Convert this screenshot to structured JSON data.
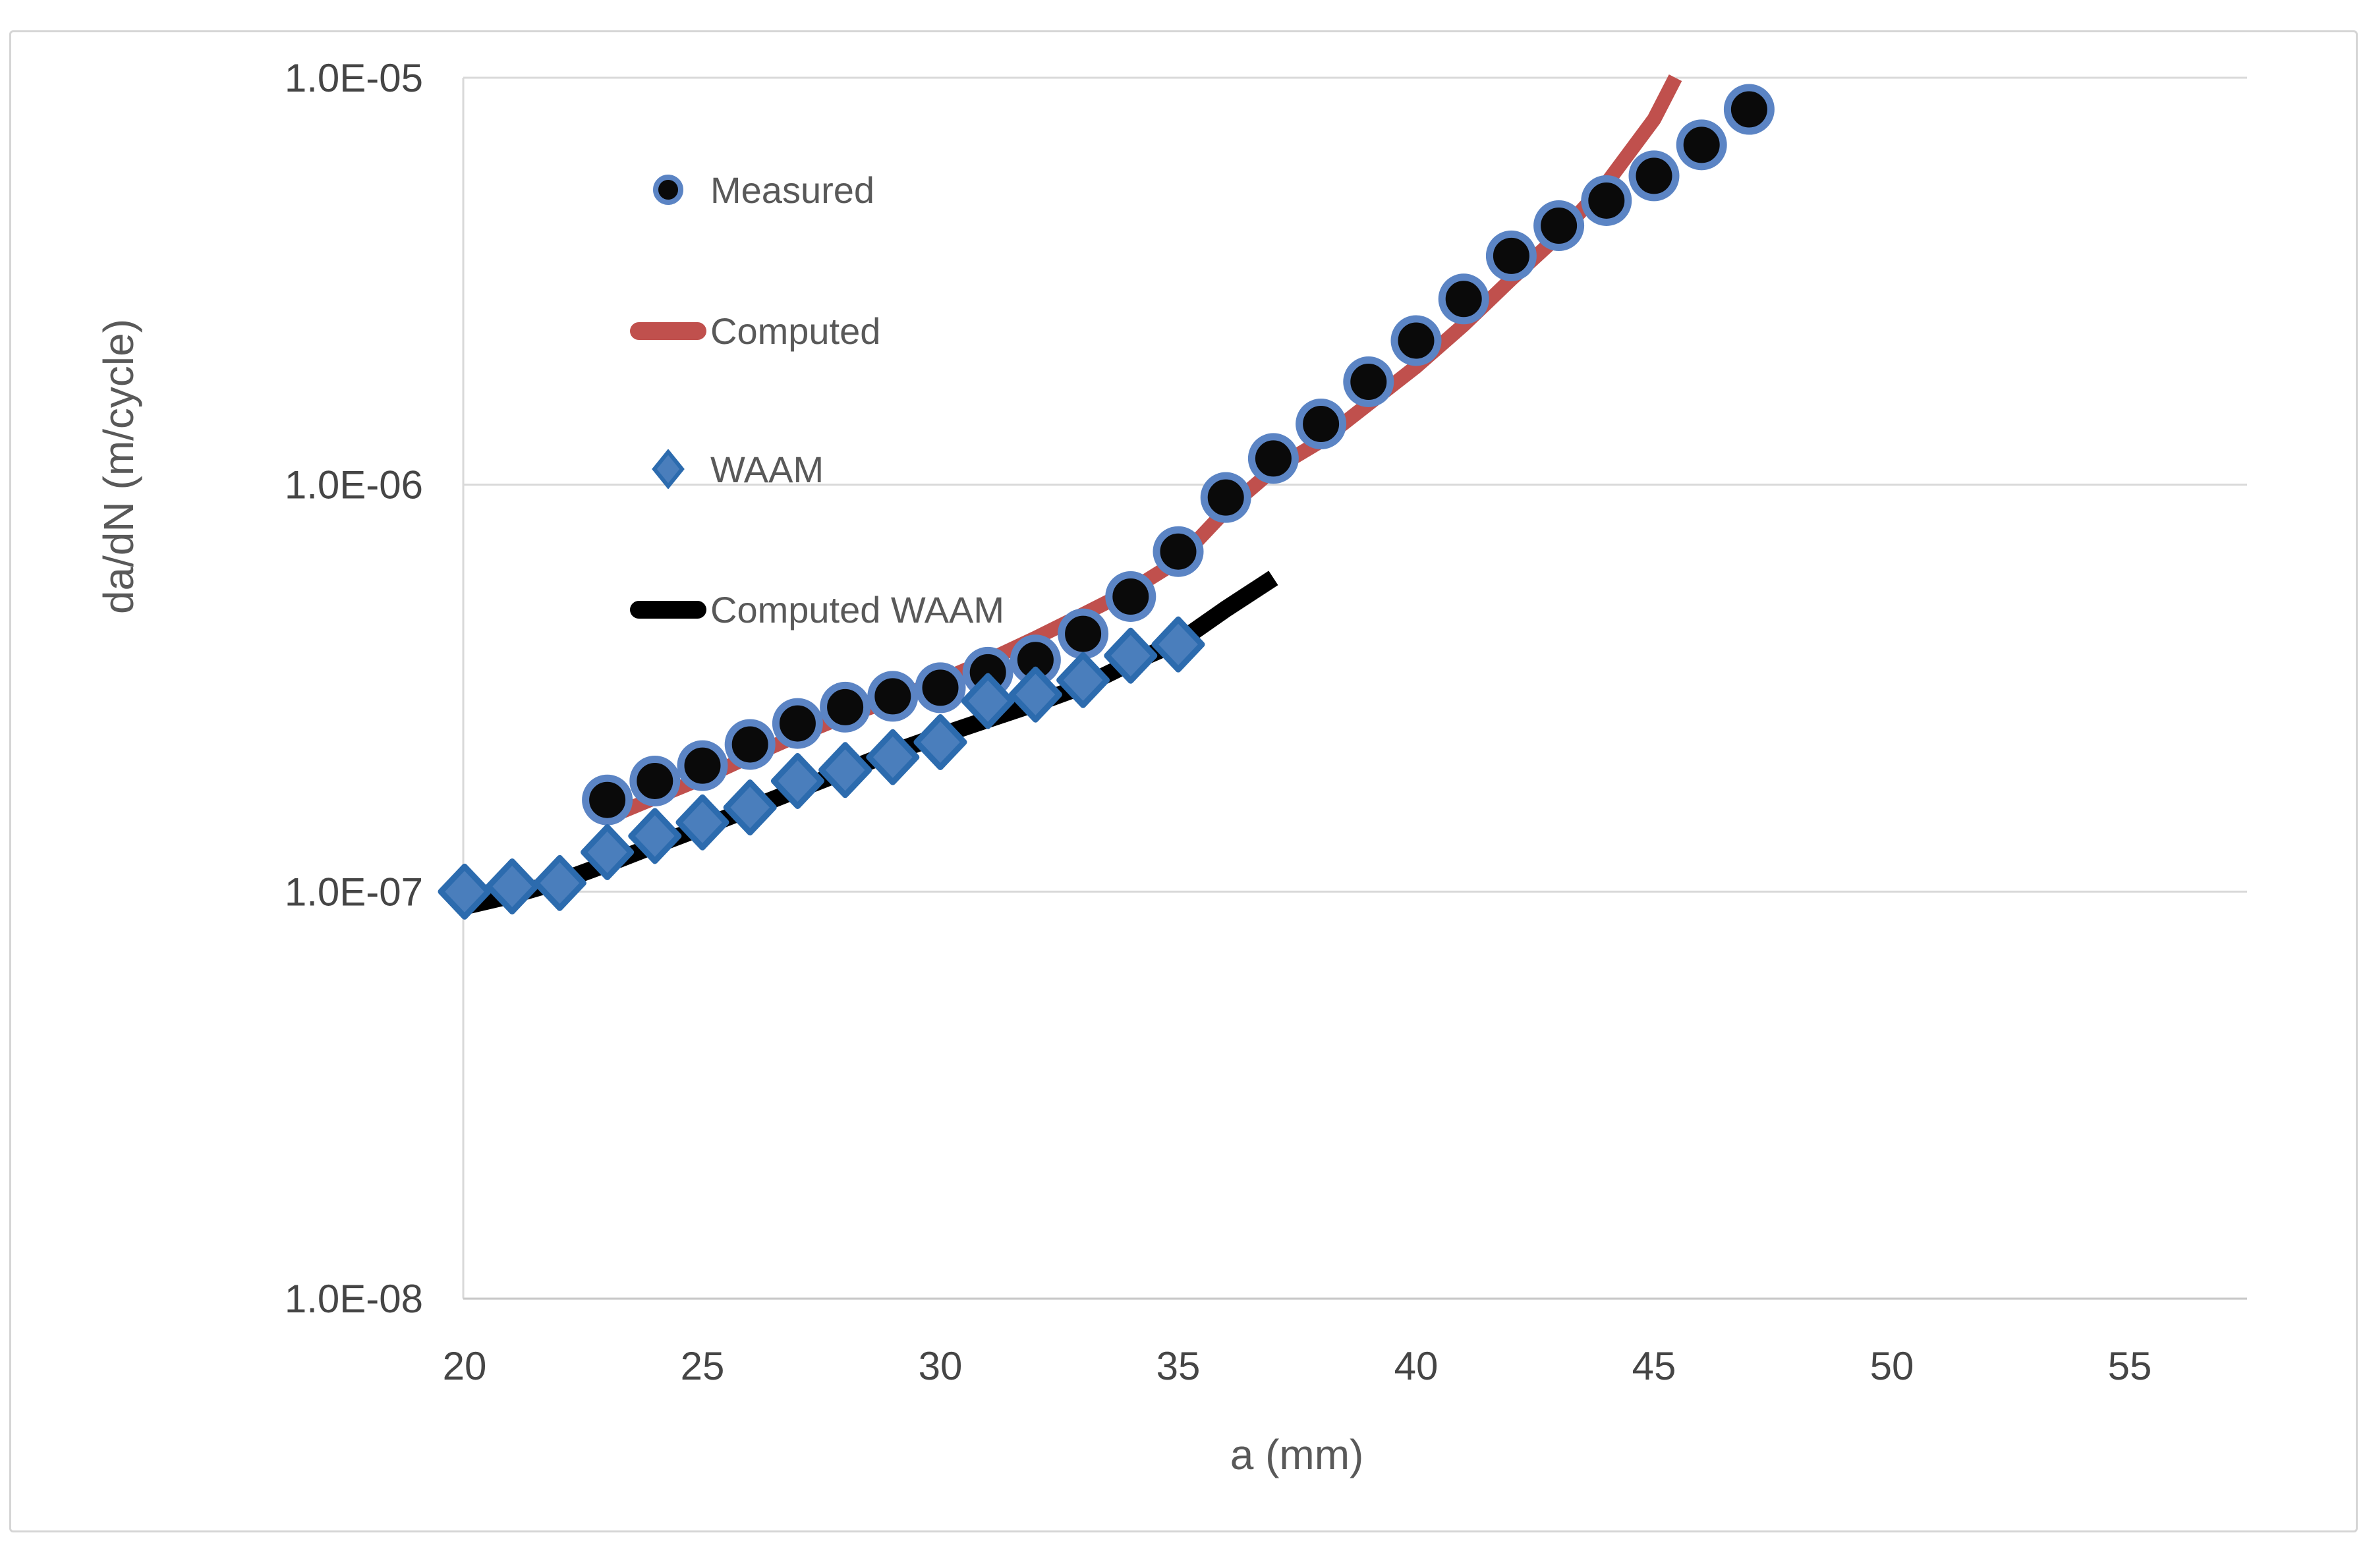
{
  "chart_data": {
    "type": "scatter",
    "title": "",
    "xlabel": "a (mm)",
    "ylabel": "da/dN (m/cycle)",
    "x_axis": {
      "min": 20,
      "max": 57.5,
      "tick_labels": [
        "20",
        "25",
        "30",
        "35",
        "40",
        "45",
        "50",
        "55"
      ],
      "tick_values": [
        20,
        25,
        30,
        35,
        40,
        45,
        50,
        55
      ]
    },
    "y_axis": {
      "scale": "log",
      "min": 1e-08,
      "max": 1e-05,
      "tick_labels": [
        "1.0E-05",
        "1.0E-06",
        "1.0E-07",
        "1.0E-08"
      ],
      "tick_values": [
        1e-05,
        1e-06,
        1e-07,
        1e-08
      ]
    },
    "grid": true,
    "legend_position": "inside-upper-left",
    "series": [
      {
        "name": "Measured",
        "type": "scatter",
        "marker": "circle",
        "fill": "#0a0a0a",
        "stroke": "#5b84c4",
        "points": [
          [
            23,
            1.68e-07
          ],
          [
            24,
            1.87e-07
          ],
          [
            25,
            2.04e-07
          ],
          [
            26,
            2.3e-07
          ],
          [
            27,
            2.59e-07
          ],
          [
            28,
            2.84e-07
          ],
          [
            29,
            3.02e-07
          ],
          [
            30,
            3.17e-07
          ],
          [
            31,
            3.46e-07
          ],
          [
            32,
            3.71e-07
          ],
          [
            33,
            4.3e-07
          ],
          [
            34,
            5.31e-07
          ],
          [
            35,
            6.85e-07
          ],
          [
            36,
            9.3e-07
          ],
          [
            37,
            1.16e-06
          ],
          [
            38,
            1.41e-06
          ],
          [
            39,
            1.79e-06
          ],
          [
            40,
            2.26e-06
          ],
          [
            41,
            2.86e-06
          ],
          [
            42,
            3.65e-06
          ],
          [
            43,
            4.33e-06
          ],
          [
            44,
            4.99e-06
          ],
          [
            45,
            5.74e-06
          ],
          [
            46,
            6.84e-06
          ],
          [
            47,
            8.36e-06
          ]
        ]
      },
      {
        "name": "Computed",
        "type": "line",
        "color": "#c0504d",
        "points": [
          [
            23,
            1.52e-07
          ],
          [
            24,
            1.7e-07
          ],
          [
            25,
            1.9e-07
          ],
          [
            26,
            2.15e-07
          ],
          [
            27,
            2.42e-07
          ],
          [
            28,
            2.7e-07
          ],
          [
            29,
            2.96e-07
          ],
          [
            30,
            3.3e-07
          ],
          [
            31,
            3.7e-07
          ],
          [
            32,
            4.2e-07
          ],
          [
            33,
            4.8e-07
          ],
          [
            34,
            5.5e-07
          ],
          [
            35,
            6.5e-07
          ],
          [
            36,
            8.65e-07
          ],
          [
            37,
            1.09e-06
          ],
          [
            38,
            1.28e-06
          ],
          [
            39,
            1.58e-06
          ],
          [
            40,
            1.95e-06
          ],
          [
            41,
            2.47e-06
          ],
          [
            42,
            3.2e-06
          ],
          [
            43,
            4.1e-06
          ],
          [
            44,
            5.5e-06
          ],
          [
            45,
            7.9e-06
          ],
          [
            45.45,
            1e-05
          ]
        ]
      },
      {
        "name": "WAAM",
        "type": "scatter",
        "marker": "diamond",
        "fill": "#4a7ebc",
        "stroke": "#2c6bae",
        "points": [
          [
            20,
            1e-07
          ],
          [
            21,
            1.03e-07
          ],
          [
            22,
            1.05e-07
          ],
          [
            23,
            1.25e-07
          ],
          [
            24,
            1.37e-07
          ],
          [
            25,
            1.48e-07
          ],
          [
            26,
            1.61e-07
          ],
          [
            27,
            1.87e-07
          ],
          [
            28,
            1.99e-07
          ],
          [
            29,
            2.14e-07
          ],
          [
            30,
            2.33e-07
          ],
          [
            31,
            2.94e-07
          ],
          [
            32,
            3.05e-07
          ],
          [
            33,
            3.31e-07
          ],
          [
            34,
            3.8e-07
          ],
          [
            35,
            4.05e-07
          ]
        ]
      },
      {
        "name": "Computed WAAM",
        "type": "line",
        "color": "#000000",
        "points": [
          [
            20,
            9.2e-08
          ],
          [
            21,
            9.8e-08
          ],
          [
            22,
            1.06e-07
          ],
          [
            23,
            1.17e-07
          ],
          [
            24,
            1.3e-07
          ],
          [
            25,
            1.44e-07
          ],
          [
            26,
            1.6e-07
          ],
          [
            27,
            1.78e-07
          ],
          [
            28,
            1.98e-07
          ],
          [
            29,
            2.2e-07
          ],
          [
            30,
            2.42e-07
          ],
          [
            31,
            2.65e-07
          ],
          [
            32,
            2.9e-07
          ],
          [
            33,
            3.2e-07
          ],
          [
            34,
            3.65e-07
          ],
          [
            35,
            4.1e-07
          ],
          [
            36,
            4.95e-07
          ],
          [
            37,
            5.9e-07
          ]
        ]
      }
    ],
    "colors": {
      "grid": "#d9d9d9",
      "axis_line": "#c9c9c9",
      "tick_text": "#454545",
      "axis_title_text": "#595959",
      "legend_text": "#595959",
      "background": "#ffffff",
      "frame_border": "#d5d5d5"
    }
  }
}
